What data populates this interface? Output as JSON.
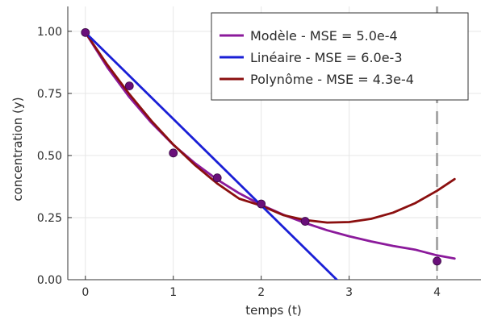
{
  "chart_data": {
    "type": "line",
    "xlabel": "temps (t)",
    "ylabel": "concentration (y)",
    "xlim": [
      -0.2,
      4.5
    ],
    "ylim": [
      0.0,
      1.1
    ],
    "x_ticks": [
      "0",
      "1",
      "2",
      "3",
      "4"
    ],
    "y_ticks": [
      "0.00",
      "0.25",
      "0.50",
      "0.75",
      "1.00"
    ],
    "grid": true,
    "legend_position": "top-right",
    "vertical_marker_x": 4,
    "data_points": {
      "color": "#6a0f7a",
      "x": [
        0,
        0.5,
        1.0,
        1.5,
        2.0,
        2.5,
        4.0
      ],
      "y": [
        0.995,
        0.78,
        0.51,
        0.41,
        0.305,
        0.235,
        0.075
      ]
    },
    "series": [
      {
        "name": "Modèle - MSE = 5.0e-4",
        "color": "#8b1a9b",
        "x": [
          0,
          0.25,
          0.5,
          0.75,
          1.0,
          1.25,
          1.5,
          1.75,
          2.0,
          2.25,
          2.5,
          2.75,
          3.0,
          3.25,
          3.5,
          3.75,
          4.0,
          4.2
        ],
        "y": [
          0.995,
          0.855,
          0.735,
          0.632,
          0.543,
          0.468,
          0.403,
          0.348,
          0.301,
          0.262,
          0.228,
          0.199,
          0.175,
          0.154,
          0.136,
          0.121,
          0.098,
          0.085
        ]
      },
      {
        "name": "Linéaire - MSE = 6.0e-3",
        "color": "#1a1fd6",
        "x": [
          0,
          2.86
        ],
        "y": [
          0.995,
          0.0
        ]
      },
      {
        "name": "Polynôme - MSE = 4.3e-4",
        "color": "#8b0f0f",
        "x": [
          0,
          0.25,
          0.5,
          0.75,
          1.0,
          1.25,
          1.5,
          1.75,
          2.0,
          2.25,
          2.5,
          2.75,
          3.0,
          3.25,
          3.5,
          3.75,
          4.0,
          4.2
        ],
        "y": [
          0.995,
          0.865,
          0.747,
          0.64,
          0.544,
          0.46,
          0.387,
          0.326,
          0.298,
          0.26,
          0.24,
          0.23,
          0.232,
          0.245,
          0.27,
          0.308,
          0.358,
          0.405
        ]
      }
    ]
  }
}
